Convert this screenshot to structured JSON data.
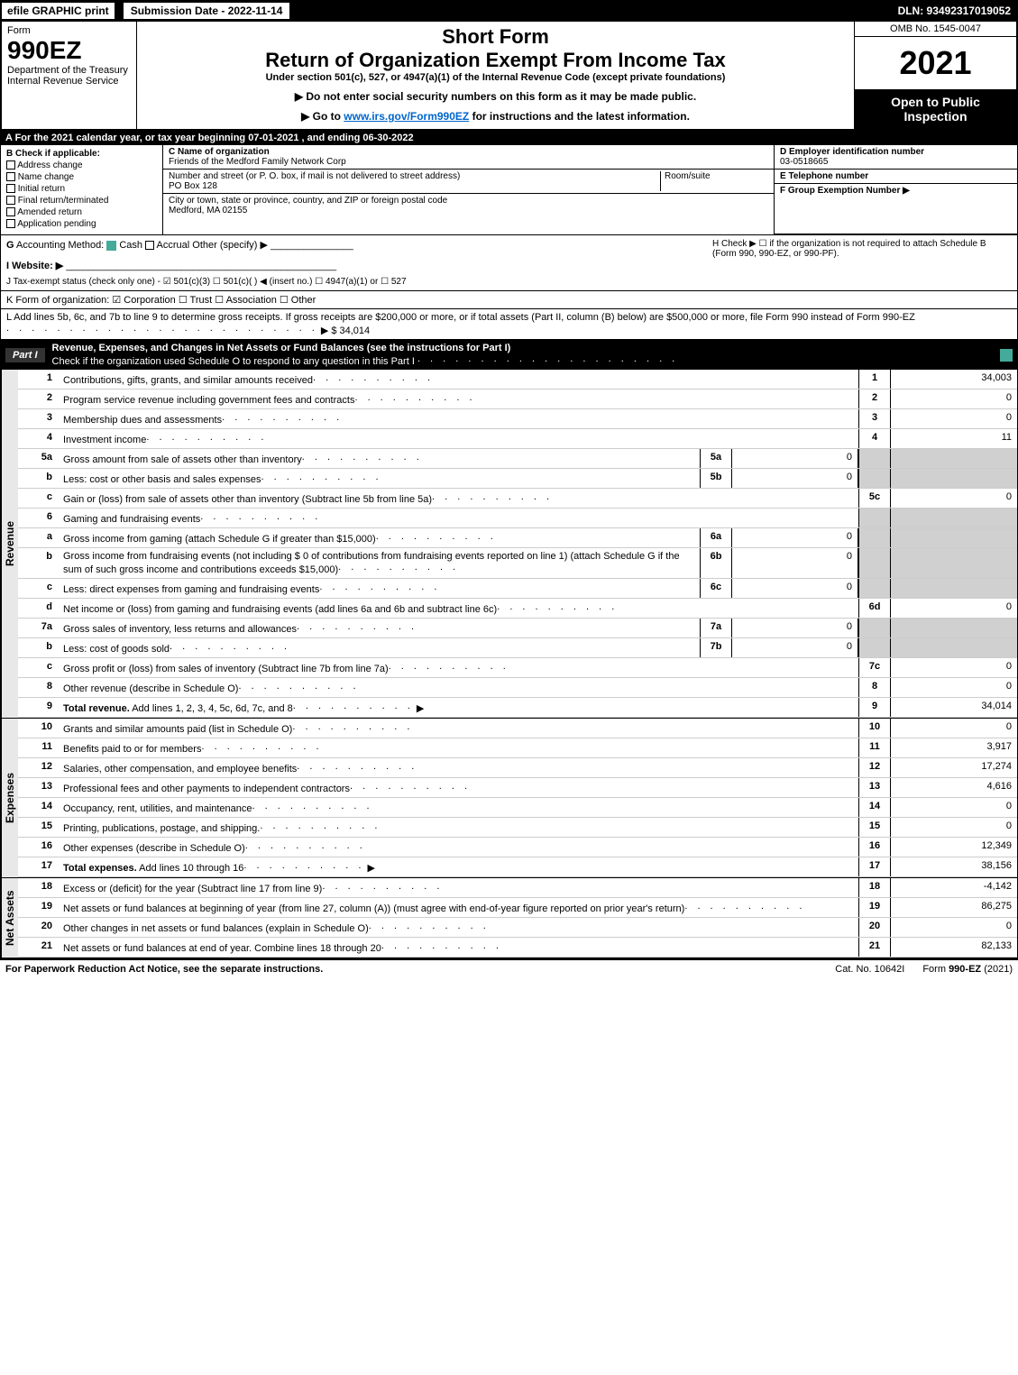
{
  "top_bar": {
    "efile": "efile GRAPHIC print",
    "submission_date": "Submission Date - 2022-11-14",
    "dln": "DLN: 93492317019052"
  },
  "header": {
    "form_word": "Form",
    "form_num": "990EZ",
    "dept": "Department of the Treasury",
    "irs": "Internal Revenue Service",
    "short_form": "Short Form",
    "main_title": "Return of Organization Exempt From Income Tax",
    "subtitle": "Under section 501(c), 527, or 4947(a)(1) of the Internal Revenue Code (except private foundations)",
    "notice1": "▶ Do not enter social security numbers on this form as it may be made public.",
    "notice2_prefix": "▶ Go to ",
    "notice2_link": "www.irs.gov/Form990EZ",
    "notice2_suffix": " for instructions and the latest information.",
    "omb": "OMB No. 1545-0047",
    "year": "2021",
    "open_public": "Open to Public Inspection"
  },
  "row_a": "A  For the 2021 calendar year, or tax year beginning 07-01-2021 , and ending 06-30-2022",
  "col_b": {
    "title": "B  Check if applicable:",
    "items": [
      "Address change",
      "Name change",
      "Initial return",
      "Final return/terminated",
      "Amended return",
      "Application pending"
    ]
  },
  "col_c": {
    "name_label": "C Name of organization",
    "name": "Friends of the Medford Family Network Corp",
    "street_label": "Number and street (or P. O. box, if mail is not delivered to street address)",
    "room_label": "Room/suite",
    "street": "PO Box 128",
    "city_label": "City or town, state or province, country, and ZIP or foreign postal code",
    "city": "Medford, MA  02155"
  },
  "col_de": {
    "d_label": "D Employer identification number",
    "d_value": "03-0518665",
    "e_label": "E Telephone number",
    "f_label": "F Group Exemption Number  ▶"
  },
  "section_g": {
    "g_text": "G Accounting Method:    Cash   ☐ Accrual   Other (specify) ▶",
    "h_text": "H   Check ▶  ☐  if the organization is not required to attach Schedule B (Form 990, 990-EZ, or 990-PF).",
    "i_text": "I Website: ▶",
    "j_text": "J Tax-exempt status (check only one) -  ☑ 501(c)(3) ☐ 501(c)(  ) ◀ (insert no.) ☐ 4947(a)(1) or ☐ 527"
  },
  "section_k": "K Form of organization:   ☑ Corporation   ☐ Trust   ☐ Association   ☐ Other",
  "section_l": {
    "text": "L Add lines 5b, 6c, and 7b to line 9 to determine gross receipts. If gross receipts are $200,000 or more, or if total assets (Part II, column (B) below) are $500,000 or more, file Form 990 instead of Form 990-EZ",
    "value": "▶ $ 34,014"
  },
  "part1": {
    "label": "Part I",
    "title": "Revenue, Expenses, and Changes in Net Assets or Fund Balances (see the instructions for Part I)",
    "check_text": "Check if the organization used Schedule O to respond to any question in this Part I"
  },
  "sections": {
    "revenue": "Revenue",
    "expenses": "Expenses",
    "net_assets": "Net Assets"
  },
  "lines": [
    {
      "n": "1",
      "desc": "Contributions, gifts, grants, and similar amounts received",
      "rn": "1",
      "rv": "34,003"
    },
    {
      "n": "2",
      "desc": "Program service revenue including government fees and contracts",
      "rn": "2",
      "rv": "0"
    },
    {
      "n": "3",
      "desc": "Membership dues and assessments",
      "rn": "3",
      "rv": "0"
    },
    {
      "n": "4",
      "desc": "Investment income",
      "rn": "4",
      "rv": "11"
    },
    {
      "n": "5a",
      "desc": "Gross amount from sale of assets other than inventory",
      "sn": "5a",
      "sv": "0",
      "shaded": true
    },
    {
      "n": "b",
      "desc": "Less: cost or other basis and sales expenses",
      "sn": "5b",
      "sv": "0",
      "shaded": true
    },
    {
      "n": "c",
      "desc": "Gain or (loss) from sale of assets other than inventory (Subtract line 5b from line 5a)",
      "rn": "5c",
      "rv": "0"
    },
    {
      "n": "6",
      "desc": "Gaming and fundraising events",
      "shaded": true
    },
    {
      "n": "a",
      "desc": "Gross income from gaming (attach Schedule G if greater than $15,000)",
      "sn": "6a",
      "sv": "0",
      "shaded": true
    },
    {
      "n": "b",
      "desc": "Gross income from fundraising events (not including $ 0   of contributions from fundraising events reported on line 1) (attach Schedule G if the sum of such gross income and contributions exceeds $15,000)",
      "sn": "6b",
      "sv": "0",
      "shaded": true
    },
    {
      "n": "c",
      "desc": "Less: direct expenses from gaming and fundraising events",
      "sn": "6c",
      "sv": "0",
      "shaded": true
    },
    {
      "n": "d",
      "desc": "Net income or (loss) from gaming and fundraising events (add lines 6a and 6b and subtract line 6c)",
      "rn": "6d",
      "rv": "0"
    },
    {
      "n": "7a",
      "desc": "Gross sales of inventory, less returns and allowances",
      "sn": "7a",
      "sv": "0",
      "shaded": true
    },
    {
      "n": "b",
      "desc": "Less: cost of goods sold",
      "sn": "7b",
      "sv": "0",
      "shaded": true
    },
    {
      "n": "c",
      "desc": "Gross profit or (loss) from sales of inventory (Subtract line 7b from line 7a)",
      "rn": "7c",
      "rv": "0"
    },
    {
      "n": "8",
      "desc": "Other revenue (describe in Schedule O)",
      "rn": "8",
      "rv": "0"
    },
    {
      "n": "9",
      "desc": "Total revenue. Add lines 1, 2, 3, 4, 5c, 6d, 7c, and 8",
      "rn": "9",
      "rv": "34,014",
      "bold": true,
      "arrow": true
    }
  ],
  "expense_lines": [
    {
      "n": "10",
      "desc": "Grants and similar amounts paid (list in Schedule O)",
      "rn": "10",
      "rv": "0"
    },
    {
      "n": "11",
      "desc": "Benefits paid to or for members",
      "rn": "11",
      "rv": "3,917"
    },
    {
      "n": "12",
      "desc": "Salaries, other compensation, and employee benefits",
      "rn": "12",
      "rv": "17,274"
    },
    {
      "n": "13",
      "desc": "Professional fees and other payments to independent contractors",
      "rn": "13",
      "rv": "4,616"
    },
    {
      "n": "14",
      "desc": "Occupancy, rent, utilities, and maintenance",
      "rn": "14",
      "rv": "0"
    },
    {
      "n": "15",
      "desc": "Printing, publications, postage, and shipping.",
      "rn": "15",
      "rv": "0"
    },
    {
      "n": "16",
      "desc": "Other expenses (describe in Schedule O)",
      "rn": "16",
      "rv": "12,349"
    },
    {
      "n": "17",
      "desc": "Total expenses. Add lines 10 through 16",
      "rn": "17",
      "rv": "38,156",
      "bold": true,
      "arrow": true
    }
  ],
  "net_lines": [
    {
      "n": "18",
      "desc": "Excess or (deficit) for the year (Subtract line 17 from line 9)",
      "rn": "18",
      "rv": "-4,142"
    },
    {
      "n": "19",
      "desc": "Net assets or fund balances at beginning of year (from line 27, column (A)) (must agree with end-of-year figure reported on prior year's return)",
      "rn": "19",
      "rv": "86,275"
    },
    {
      "n": "20",
      "desc": "Other changes in net assets or fund balances (explain in Schedule O)",
      "rn": "20",
      "rv": "0"
    },
    {
      "n": "21",
      "desc": "Net assets or fund balances at end of year. Combine lines 18 through 20",
      "rn": "21",
      "rv": "82,133"
    }
  ],
  "footer": {
    "left": "For Paperwork Reduction Act Notice, see the separate instructions.",
    "center": "Cat. No. 10642I",
    "right_prefix": "Form ",
    "right_form": "990-EZ",
    "right_suffix": " (2021)"
  }
}
